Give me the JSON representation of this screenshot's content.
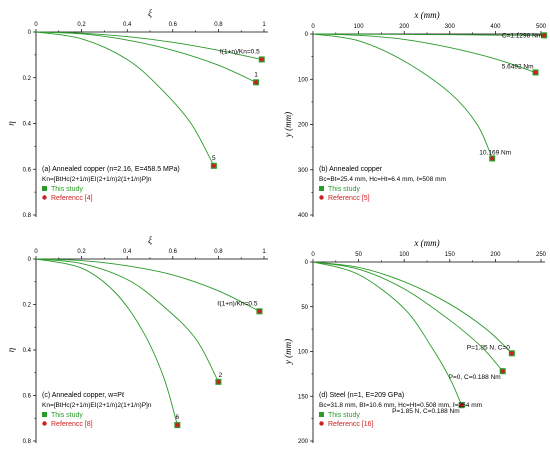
{
  "chart_data": [
    {
      "panel": "a",
      "type": "line",
      "xlabel": "ξ",
      "ylabel": "η",
      "xlim": [
        0,
        1
      ],
      "ylim": [
        0,
        0.8
      ],
      "x_axis_position": "top",
      "y_inverted": true,
      "xticks": [
        "0",
        "0.2",
        "0.4",
        "0.6",
        "0.8",
        "1"
      ],
      "yticks": [
        "0",
        "0.2",
        "0.4",
        "0.6",
        "0.8"
      ],
      "series": [
        {
          "label": "ℓ(1+n)/Kn=0.5",
          "points": [
            [
              0,
              0
            ],
            [
              0.2,
              0.005
            ],
            [
              0.4,
              0.02
            ],
            [
              0.6,
              0.045
            ],
            [
              0.8,
              0.08
            ],
            [
              0.99,
              0.12
            ]
          ]
        },
        {
          "label": "1",
          "points": [
            [
              0,
              0
            ],
            [
              0.2,
              0.008
            ],
            [
              0.4,
              0.035
            ],
            [
              0.6,
              0.08
            ],
            [
              0.8,
              0.145
            ],
            [
              0.965,
              0.22
            ]
          ]
        },
        {
          "label": "5",
          "points": [
            [
              0,
              0
            ],
            [
              0.2,
              0.03
            ],
            [
              0.4,
              0.12
            ],
            [
              0.55,
              0.25
            ],
            [
              0.68,
              0.4
            ],
            [
              0.78,
              0.585
            ]
          ]
        }
      ],
      "annotations": {
        "tag": "(a)",
        "line1": "Annealed copper (n=2.16, E=458.5 MPa)",
        "line2": "Kn=[BtHc(2+1/n)EI(2+1/n)2(1+1/n)P]n",
        "legend": [
          "This study",
          "Referencc [4]"
        ]
      }
    },
    {
      "panel": "b",
      "type": "line",
      "xlabel": "x (mm)",
      "ylabel": "y (mm)",
      "xlim": [
        0,
        500
      ],
      "ylim": [
        0,
        400
      ],
      "x_axis_position": "top",
      "y_inverted": true,
      "xticks": [
        "0",
        "100",
        "200",
        "300",
        "400",
        "500"
      ],
      "yticks": [
        "0",
        "100",
        "200",
        "300",
        "400"
      ],
      "series": [
        {
          "label": "C=1.1298 Nm",
          "points": [
            [
              0,
              0
            ],
            [
              100,
              0.5
            ],
            [
              200,
              1
            ],
            [
              300,
              1.5
            ],
            [
              400,
              2.5
            ],
            [
              507,
              3
            ]
          ]
        },
        {
          "label": "5.6492 Nm",
          "points": [
            [
              0,
              0
            ],
            [
              100,
              3
            ],
            [
              200,
              12
            ],
            [
              300,
              30
            ],
            [
              400,
              55
            ],
            [
              488,
              85
            ]
          ]
        },
        {
          "label": "10.169 Nm",
          "points": [
            [
              0,
              0
            ],
            [
              100,
              15
            ],
            [
              200,
              60
            ],
            [
              300,
              130
            ],
            [
              360,
              200
            ],
            [
              393,
              275
            ]
          ]
        }
      ],
      "annotations": {
        "tag": "(b)",
        "line1": "Annealed copper",
        "line2": "Bc=Bt=25.4 mm, Hc=Ht=6.4 mm, ℓ=508 mm",
        "legend": [
          "This study",
          "Referencc [5]"
        ]
      }
    },
    {
      "panel": "c",
      "type": "line",
      "xlabel": "ξ",
      "ylabel": "η",
      "xlim": [
        0,
        1
      ],
      "ylim": [
        0,
        0.8
      ],
      "x_axis_position": "top",
      "y_inverted": true,
      "xticks": [
        "0",
        "0.2",
        "0.4",
        "0.6",
        "0.8",
        "1"
      ],
      "yticks": [
        "0",
        "0.2",
        "0.4",
        "0.6",
        "0.8"
      ],
      "series": [
        {
          "label": "ℓ(1+n)/Kn=0.5",
          "points": [
            [
              0,
              0
            ],
            [
              0.2,
              0.007
            ],
            [
              0.4,
              0.03
            ],
            [
              0.6,
              0.07
            ],
            [
              0.8,
              0.14
            ],
            [
              0.98,
              0.23
            ]
          ]
        },
        {
          "label": "2",
          "points": [
            [
              0,
              0
            ],
            [
              0.2,
              0.02
            ],
            [
              0.4,
              0.09
            ],
            [
              0.55,
              0.2
            ],
            [
              0.7,
              0.35
            ],
            [
              0.8,
              0.54
            ]
          ]
        },
        {
          "label": "6",
          "points": [
            [
              0,
              0
            ],
            [
              0.2,
              0.04
            ],
            [
              0.35,
              0.15
            ],
            [
              0.47,
              0.32
            ],
            [
              0.56,
              0.52
            ],
            [
              0.62,
              0.73
            ]
          ]
        }
      ],
      "annotations": {
        "tag": "(c)",
        "line1": "Annealed copper, w=Pℓ",
        "line2": "Kn=[BtHc(2+1/n)EI(2+1/n)2(1+1/n)P]n",
        "legend": [
          "This study",
          "Referencc [8]"
        ]
      }
    },
    {
      "panel": "d",
      "type": "line",
      "xlabel": "x (mm)",
      "ylabel": "y (mm)",
      "xlim": [
        0,
        250
      ],
      "ylim": [
        0,
        200
      ],
      "x_axis_position": "top",
      "y_inverted": true,
      "xticks": [
        "0",
        "50",
        "100",
        "150",
        "200",
        "250"
      ],
      "yticks": [
        "0",
        "50",
        "100",
        "150",
        "200"
      ],
      "series": [
        {
          "label": "P=1.85 N, C=0",
          "points": [
            [
              0,
              0
            ],
            [
              50,
              6
            ],
            [
              100,
              22
            ],
            [
              150,
              47
            ],
            [
              190,
              75
            ],
            [
              218,
              102
            ]
          ]
        },
        {
          "label": "P=0, C=0.188 Nm",
          "points": [
            [
              0,
              0
            ],
            [
              50,
              8
            ],
            [
              100,
              30
            ],
            [
              150,
              65
            ],
            [
              185,
              95
            ],
            [
              208,
              122
            ]
          ]
        },
        {
          "label": "P=1.85 N, C=0.188 Nm",
          "points": [
            [
              0,
              0
            ],
            [
              50,
              14
            ],
            [
              100,
              52
            ],
            [
              130,
              95
            ],
            [
              150,
              130
            ],
            [
              163,
              160
            ]
          ]
        }
      ],
      "annotations": {
        "tag": "(d)",
        "line1": "Steel (n=1, E=209 GPa)",
        "line2": "Bc=31.8 mm, Bt=10.6 mm, Hc=Ht=0.508 mm, ℓ=254 mm",
        "legend": [
          "This study",
          "Referencc [16]"
        ]
      }
    }
  ],
  "colors": {
    "curve": "#2a9a2a",
    "study_marker": "#2a9a2a",
    "reference_marker": "#cc2020"
  }
}
